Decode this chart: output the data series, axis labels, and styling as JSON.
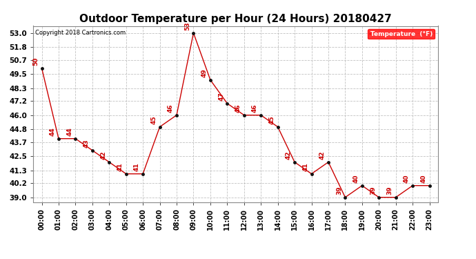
{
  "title": "Outdoor Temperature per Hour (24 Hours) 20180427",
  "copyright": "Copyright 2018 Cartronics.com",
  "legend_label": "Temperature  (°F)",
  "hours": [
    "00:00",
    "01:00",
    "02:00",
    "03:00",
    "04:00",
    "05:00",
    "06:00",
    "07:00",
    "08:00",
    "09:00",
    "10:00",
    "11:00",
    "12:00",
    "13:00",
    "14:00",
    "15:00",
    "16:00",
    "17:00",
    "18:00",
    "19:00",
    "20:00",
    "21:00",
    "22:00",
    "23:00"
  ],
  "temperatures": [
    50,
    44,
    44,
    43,
    42,
    41,
    41,
    45,
    46,
    53,
    49,
    47,
    46,
    46,
    45,
    42,
    41,
    42,
    39,
    40,
    39,
    39,
    40,
    40
  ],
  "line_color": "#cc0000",
  "marker_color": "#111111",
  "background_color": "#ffffff",
  "grid_color": "#bbbbbb",
  "title_fontsize": 11,
  "yticks": [
    39.0,
    40.2,
    41.3,
    42.5,
    43.7,
    44.8,
    46.0,
    47.2,
    48.3,
    49.5,
    50.7,
    51.8,
    53.0
  ],
  "ylim": [
    38.6,
    53.6
  ],
  "annotation_color": "#cc0000",
  "annotation_fontsize": 6.5,
  "copyright_fontsize": 6.0,
  "tick_fontsize": 7.0,
  "ytick_fontsize": 7.5
}
